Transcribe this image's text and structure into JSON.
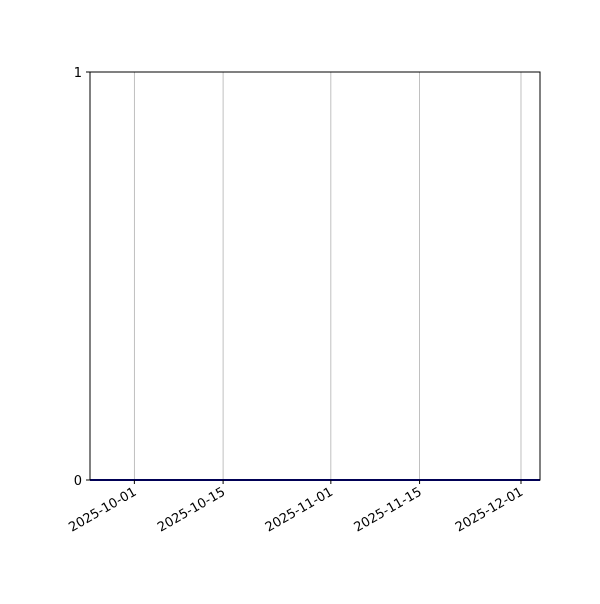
{
  "chart_data": {
    "type": "line",
    "title": "",
    "xlabel": "",
    "ylabel": "",
    "x_axis_type": "date",
    "xlim": [
      "2025-09-24",
      "2025-12-04"
    ],
    "ylim": [
      0,
      1
    ],
    "x_ticks": [
      "2025-10-01",
      "2025-10-15",
      "2025-11-01",
      "2025-11-15",
      "2025-12-01"
    ],
    "y_ticks": [
      "0",
      "1"
    ],
    "grid": {
      "x": true,
      "y": false
    },
    "series": [
      {
        "x": [
          "2025-09-24",
          "2025-12-04"
        ],
        "y": [
          0,
          0
        ],
        "color": "#0000aa"
      }
    ],
    "colors": {
      "grid": "#b0b0b0",
      "axes": "#000000"
    }
  }
}
